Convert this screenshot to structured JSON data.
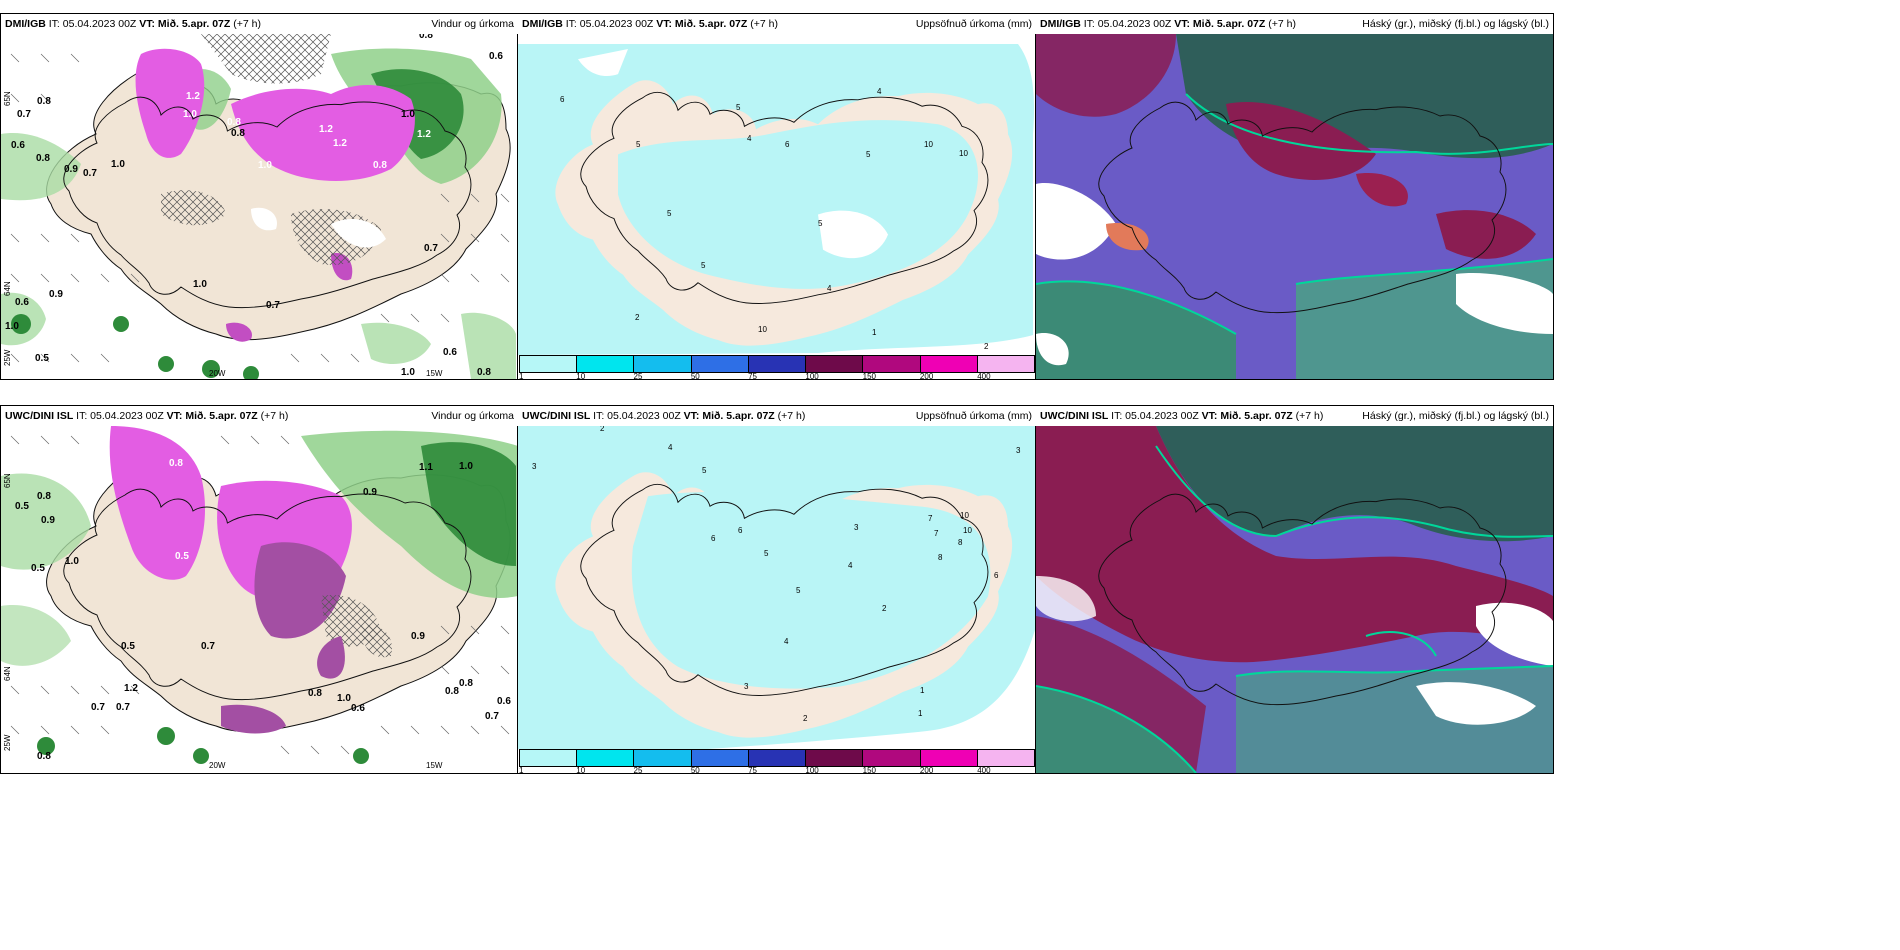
{
  "panels": [
    {
      "model": "DMI/IGB",
      "it": "IT: 05.04.2023 00Z",
      "vt": "VT: Mið. 5.apr. 07Z",
      "lead": "(+7 h)",
      "title": "Vindur og úrkoma"
    },
    {
      "model": "DMI/IGB",
      "it": "IT: 05.04.2023 00Z",
      "vt": "VT: Mið. 5.apr. 07Z",
      "lead": "(+7 h)",
      "title": "Uppsöfnuð úrkoma (mm)"
    },
    {
      "model": "DMI/IGB",
      "it": "IT: 05.04.2023 00Z",
      "vt": "VT: Mið. 5.apr. 07Z",
      "lead": "(+7 h)",
      "title": "Háský (gr.), miðský (fj.bl.) og lágský (bl.)"
    },
    {
      "model": "UWC/DINI ISL",
      "it": "IT: 05.04.2023 00Z",
      "vt": "VT: Mið. 5.apr. 07Z",
      "lead": "(+7 h)",
      "title": "Vindur og úrkoma"
    },
    {
      "model": "UWC/DINI ISL",
      "it": "IT: 05.04.2023 00Z",
      "vt": "VT: Mið. 5.apr. 07Z",
      "lead": "(+7 h)",
      "title": "Uppsöfnuð úrkoma (mm)"
    },
    {
      "model": "UWC/DINI ISL",
      "it": "IT: 05.04.2023 00Z",
      "vt": "VT: Mið. 5.apr. 07Z",
      "lead": "(+7 h)",
      "title": "Háský (gr.), miðský (fj.bl.) og lágský (bl.)"
    }
  ],
  "colorbar": {
    "labels": [
      "1",
      "10",
      "25",
      "50",
      "75",
      "100",
      "150",
      "200",
      "400"
    ],
    "colors": [
      "#b6f7f7",
      "#00e5ee",
      "#14bdee",
      "#2e6fe6",
      "#2833b4",
      "#6e0a4a",
      "#b0087e",
      "#ef00b4",
      "#f5b4f0"
    ]
  },
  "axis_labels": {
    "lat65n": "65N",
    "lat64n": "64N",
    "lon25w": "25W",
    "lon20w": "20W",
    "lon15w": "15W"
  },
  "values": {
    "wind_top": [
      "0.8",
      "0.6",
      "0.8",
      "0.7",
      "0.6",
      "0.8",
      "0.9",
      "0.7",
      "1.0",
      "1.2",
      "1.0",
      "0.8",
      "1.2",
      "1.2",
      "1.2",
      "1.0",
      "1.0",
      "1.0",
      "0.8",
      "0.7",
      "0.9",
      "0.6",
      "1.0",
      "0.5",
      "0.7",
      "0.8",
      "1.0",
      "0.6",
      "0.8"
    ],
    "precip_top": [
      "6",
      "5",
      "4",
      "6",
      "5",
      "4",
      "5",
      "5",
      "10",
      "10",
      "5",
      "2",
      "1",
      "2",
      "5",
      "10",
      "4"
    ],
    "wind_bottom": [
      "0.5",
      "0.8",
      "0.9",
      "0.5",
      "1.0",
      "1.2",
      "0.7",
      "0.8",
      "0.5",
      "0.8",
      "1.0",
      "1.1",
      "0.9",
      "0.7",
      "0.8",
      "0.6",
      "0.8",
      "1.0",
      "0.6",
      "0.9",
      "0.7",
      "0.5",
      "0.7",
      "0.8"
    ],
    "precip_bottom": [
      "2",
      "3",
      "4",
      "5",
      "6",
      "7",
      "8",
      "10",
      "3",
      "2",
      "1",
      "4",
      "5",
      "6",
      "5",
      "4",
      "3",
      "2",
      "1",
      "7",
      "8",
      "10",
      "6",
      "3"
    ]
  }
}
